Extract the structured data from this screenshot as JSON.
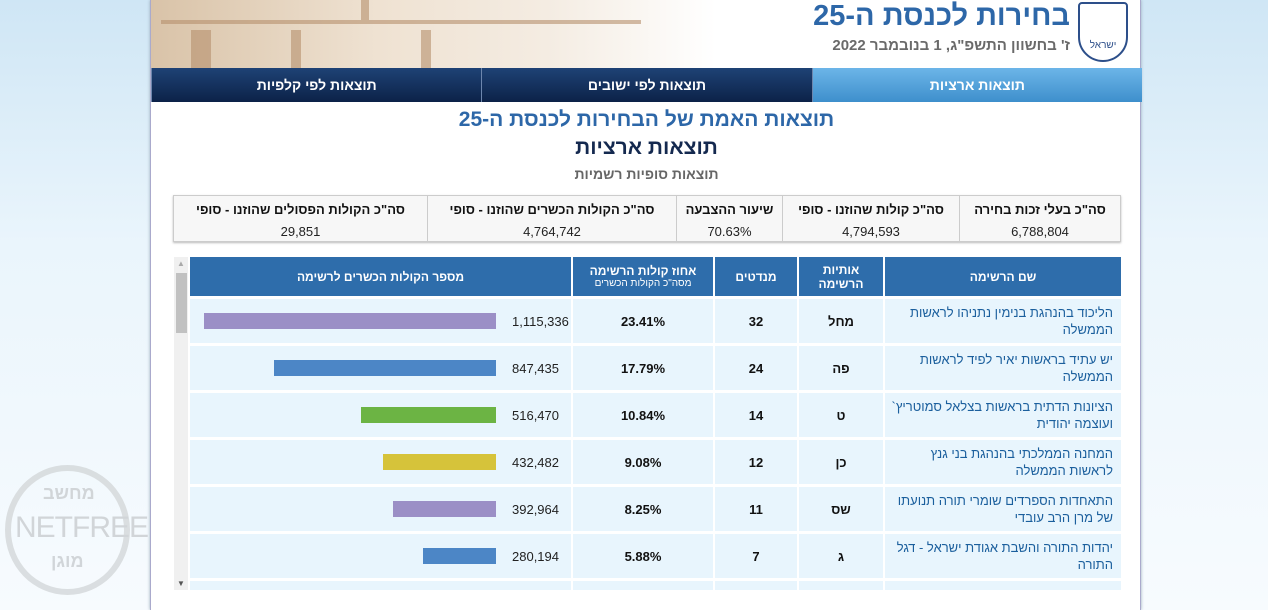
{
  "header": {
    "title": "בחירות לכנסת ה-25",
    "date": "ז' בחשוון התשפ\"ג, 1 בנובמבר 2022",
    "emblem_text": "ישראל"
  },
  "tabs": [
    {
      "label": "תוצאות ארציות",
      "active": true
    },
    {
      "label": "תוצאות לפי ישובים",
      "active": false
    },
    {
      "label": "תוצאות לפי קלפיות",
      "active": false
    }
  ],
  "headings": {
    "main": "תוצאות האמת של הבחירות לכנסת ה-25",
    "sub": "תוצאות ארציות",
    "status": "תוצאות סופיות רשמיות"
  },
  "summary": [
    {
      "label": "סה\"כ בעלי זכות בחירה",
      "value": "6,788,804"
    },
    {
      "label": "סה\"כ קולות שהוזנו - סופי",
      "value": "4,794,593"
    },
    {
      "label": "שיעור ההצבעה",
      "value": "70.63%"
    },
    {
      "label": "סה\"כ הקולות הכשרים שהוזנו - סופי",
      "value": "4,764,742"
    },
    {
      "label": "סה\"כ הקולות הפסולים שהוזנו - סופי",
      "value": "29,851"
    }
  ],
  "table": {
    "headers": {
      "name": "שם הרשימה",
      "letters": "אותיות הרשימה",
      "seats": "מנדטים",
      "percent": "אחוז קולות הרשימה",
      "percent_sub": "מסה\"כ הקולות הכשרים",
      "votes": "מספר הקולות הכשרים לרשימה"
    },
    "rows": [
      {
        "name": "הליכוד בהנהגת בנימין נתניהו לראשות הממשלה",
        "letters": "מחל",
        "seats": "32",
        "percent": "23.41%",
        "votes": "1,115,336",
        "votes_num": 1115336,
        "color": "#9b8fc6"
      },
      {
        "name": "יש עתיד בראשות יאיר לפיד לראשות הממשלה",
        "letters": "פה",
        "seats": "24",
        "percent": "17.79%",
        "votes": "847,435",
        "votes_num": 847435,
        "color": "#4c86c6"
      },
      {
        "name": "הציונות הדתית בראשות בצלאל סמוטריץ` ועוצמה יהודית",
        "letters": "ט",
        "seats": "14",
        "percent": "10.84%",
        "votes": "516,470",
        "votes_num": 516470,
        "color": "#6cb444"
      },
      {
        "name": "המחנה הממלכתי בהנהגת בני גנץ לראשות הממשלה",
        "letters": "כן",
        "seats": "12",
        "percent": "9.08%",
        "votes": "432,482",
        "votes_num": 432482,
        "color": "#d6c33a"
      },
      {
        "name": "התאחדות הספרדים שומרי תורה תנועתו של מרן הרב עובדי",
        "letters": "שס",
        "seats": "11",
        "percent": "8.25%",
        "votes": "392,964",
        "votes_num": 392964,
        "color": "#9b8fc6"
      },
      {
        "name": "יהדות התורה והשבת אגודת ישראל - דגל התורה",
        "letters": "ג",
        "seats": "7",
        "percent": "5.88%",
        "votes": "280,194",
        "votes_num": 280194,
        "color": "#4c86c6"
      }
    ]
  },
  "watermark": {
    "top": "מחשב",
    "middle": "NETFREE",
    "bottom": "מוגן"
  }
}
